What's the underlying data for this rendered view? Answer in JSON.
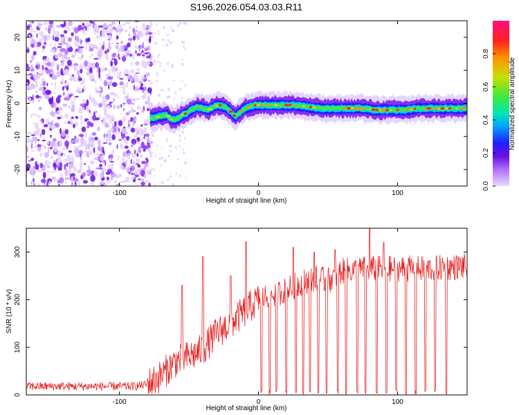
{
  "title": "S196.2026.054.03.03.R11",
  "chart_data": [
    {
      "type": "heatmap",
      "name": "spectrogram",
      "xlabel": "Height of straight line (km)",
      "ylabel": "Frequency (Hz)",
      "xlim": [
        -167,
        150
      ],
      "ylim": [
        -25,
        25
      ],
      "xticks": [
        -100,
        0,
        100
      ],
      "xtick_labels": [
        "-100",
        "0",
        "100"
      ],
      "yticks": [
        20,
        10,
        0,
        -10,
        -20
      ],
      "ytick_labels": [
        "20",
        "10",
        "0",
        "-10",
        "-20"
      ],
      "ridge": {
        "x": [
          -78,
          -72,
          -66,
          -62,
          -58,
          -55,
          -52,
          -48,
          -44,
          -40,
          -36,
          -32,
          -28,
          -24,
          -20,
          -17,
          -14,
          -10,
          -6,
          -2,
          5,
          15,
          25,
          35,
          45,
          55,
          65,
          75,
          85,
          95,
          105,
          115,
          125,
          135,
          145,
          150
        ],
        "y": [
          -4.5,
          -4.0,
          -3.5,
          -5.0,
          -4.5,
          -3.5,
          -3.0,
          -2.0,
          -1.0,
          -1.5,
          -2.0,
          -1.0,
          -0.5,
          -1.0,
          -2.5,
          -4.0,
          -3.0,
          -1.5,
          -1.0,
          -0.5,
          -0.5,
          -0.5,
          -0.5,
          -1.0,
          -1.5,
          -1.5,
          -1.5,
          -1.5,
          -2.0,
          -2.0,
          -2.0,
          -1.5,
          -1.5,
          -1.5,
          -1.5,
          -1.5
        ]
      },
      "colorbar": {
        "label": "Normalized spectral amplitude",
        "range": [
          0,
          1
        ],
        "ticks": [
          "0.0",
          "0.2",
          "0.4",
          "0.6",
          "0.8"
        ],
        "colors": [
          "#e8d8ff",
          "#b070ff",
          "#6a10e0",
          "#2020ff",
          "#00c8ff",
          "#00e8b0",
          "#40e840",
          "#c8e000",
          "#ff9000",
          "#ff2020",
          "#ff1080"
        ]
      }
    },
    {
      "type": "line",
      "name": "snr",
      "xlabel": "Height of straight line (km)",
      "ylabel": "SNR (10 * v/v)",
      "xlim": [
        -167,
        150
      ],
      "ylim": [
        0,
        350
      ],
      "xticks": [
        -100,
        0,
        100
      ],
      "xtick_labels": [
        "-100",
        "0",
        "100"
      ],
      "yticks": [
        0,
        100,
        200,
        300
      ],
      "ytick_labels": [
        "0",
        "100",
        "200",
        "300"
      ],
      "color": "#e82020",
      "envelope": {
        "x": [
          -167,
          -90,
          -80,
          -70,
          -60,
          -50,
          -40,
          -30,
          -20,
          -10,
          0,
          10,
          20,
          30,
          40,
          50,
          60,
          80,
          100,
          120,
          150
        ],
        "y": [
          18,
          18,
          22,
          40,
          70,
          80,
          95,
          130,
          150,
          175,
          200,
          210,
          220,
          235,
          245,
          240,
          260,
          265,
          265,
          265,
          270
        ]
      },
      "spikes": [
        {
          "x": -55,
          "y": 230
        },
        {
          "x": -40,
          "y": 290
        },
        {
          "x": -20,
          "y": 250
        },
        {
          "x": -9,
          "y": 322
        },
        {
          "x": 25,
          "y": 310
        },
        {
          "x": 40,
          "y": 300
        },
        {
          "x": 55,
          "y": 305
        },
        {
          "x": 80,
          "y": 350
        },
        {
          "x": 90,
          "y": 320
        }
      ],
      "drops": [
        2,
        8,
        13,
        20,
        27,
        32,
        37,
        43,
        49,
        57,
        63,
        71,
        77,
        85,
        92,
        99,
        106,
        113,
        120,
        127,
        135
      ]
    }
  ]
}
